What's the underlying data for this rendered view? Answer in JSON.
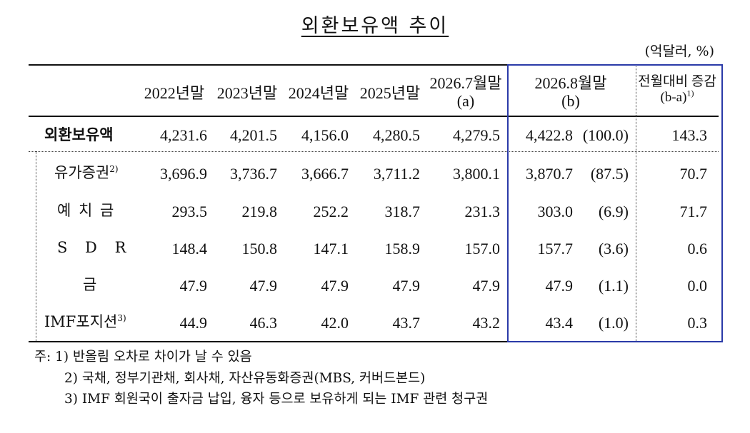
{
  "title": "외환보유액 추이",
  "unit": "(억달러, %)",
  "columns": {
    "c2022": "2022년말",
    "c2023": "2023년말",
    "c2024": "2024년말",
    "c2025": "2025년말",
    "c2026_7": "2026.7월말",
    "c2026_7_sub": "(a)",
    "c2026_8": "2026.8월말",
    "c2026_8_sub": "(b)",
    "change": "전월대비 증감",
    "change_sub": "(b-a)",
    "change_note": "1)"
  },
  "rows": [
    {
      "label": "외환보유액",
      "note": "",
      "v2022": "4,231.6",
      "v2023": "4,201.5",
      "v2024": "4,156.0",
      "v2025": "4,280.5",
      "v2026_7": "4,279.5",
      "v2026_8": "4,422.8",
      "share": "(100.0)",
      "change": "143.3"
    },
    {
      "label": "유가증권",
      "note": "2)",
      "v2022": "3,696.9",
      "v2023": "3,736.7",
      "v2024": "3,666.7",
      "v2025": "3,711.2",
      "v2026_7": "3,800.1",
      "v2026_8": "3,870.7",
      "share": "(87.5)",
      "change": "70.7"
    },
    {
      "label": "예 치 금",
      "note": "",
      "v2022": "293.5",
      "v2023": "219.8",
      "v2024": "252.2",
      "v2025": "318.7",
      "v2026_7": "231.3",
      "v2026_8": "303.0",
      "share": "(6.9)",
      "change": "71.7"
    },
    {
      "label": "S D R",
      "note": "",
      "v2022": "148.4",
      "v2023": "150.8",
      "v2024": "147.1",
      "v2025": "158.9",
      "v2026_7": "157.0",
      "v2026_8": "157.7",
      "share": "(3.6)",
      "change": "0.6"
    },
    {
      "label": "금",
      "note": "",
      "v2022": "47.9",
      "v2023": "47.9",
      "v2024": "47.9",
      "v2025": "47.9",
      "v2026_7": "47.9",
      "v2026_8": "47.9",
      "share": "(1.1)",
      "change": "0.0"
    },
    {
      "label": "IMF포지션",
      "note": "3)",
      "v2022": "44.9",
      "v2023": "46.3",
      "v2024": "42.0",
      "v2025": "43.7",
      "v2026_7": "43.2",
      "v2026_8": "43.4",
      "share": "(1.0)",
      "change": "0.3"
    }
  ],
  "notes": [
    "주: 1) 반올림 오차로 차이가 날 수 있음",
    "2) 국채, 정부기관채, 회사채, 자산유동화증권(MBS, 커버드본드)",
    "3) IMF 회원국이 출자금 납입, 융자 등으로 보유하게 되는 IMF 관련 청구권"
  ]
}
